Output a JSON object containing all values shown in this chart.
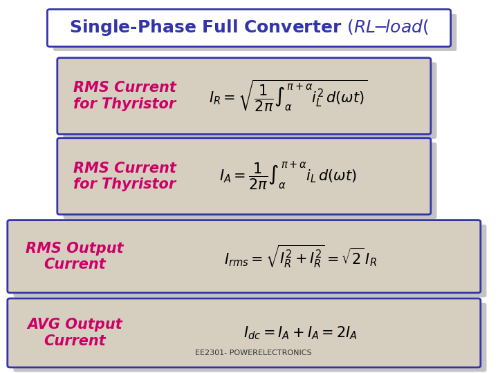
{
  "bg_color": "#ffffff",
  "box_bg": "#d6cfc0",
  "box_edge_color": "#3333aa",
  "title_text": "Single-Phase Full Converter \\textit{(RL-load(}",
  "title_bg": "#ffffff",
  "title_edge": "#3333aa",
  "label_color": "#cc0066",
  "formula_color": "#000000",
  "subtitle_color": "#3333aa",
  "footer_text": "EE2301- POWERELECTRONICS",
  "boxes": [
    {
      "label": "RMS Current\nfor Thyristor",
      "formula": "$I_R = \\\\sqrt{\\\\dfrac{1}{2\\\\pi}\\\\int_{\\\\alpha}^{\\\\pi+\\\\alpha} i_L^2 \\\\, d(\\\\omega t)}$"
    },
    {
      "label": "RMS Current\nfor Thyristor",
      "formula": "$I_A = \\\\dfrac{1}{2\\\\pi}\\\\int_{\\\\alpha}^{\\\\pi+\\\\alpha} i_L \\\\, d(\\\\omega t)$"
    },
    {
      "label": "RMS Output\nCurrent",
      "formula": "$I_{rms} = \\\\sqrt{I_R^2 + I_R^2} = \\\\sqrt{2} I_R$"
    },
    {
      "label": "AVG Output\nCurrent",
      "formula": "$I_{dc} = I_A + I_A = 2I_A$"
    }
  ]
}
